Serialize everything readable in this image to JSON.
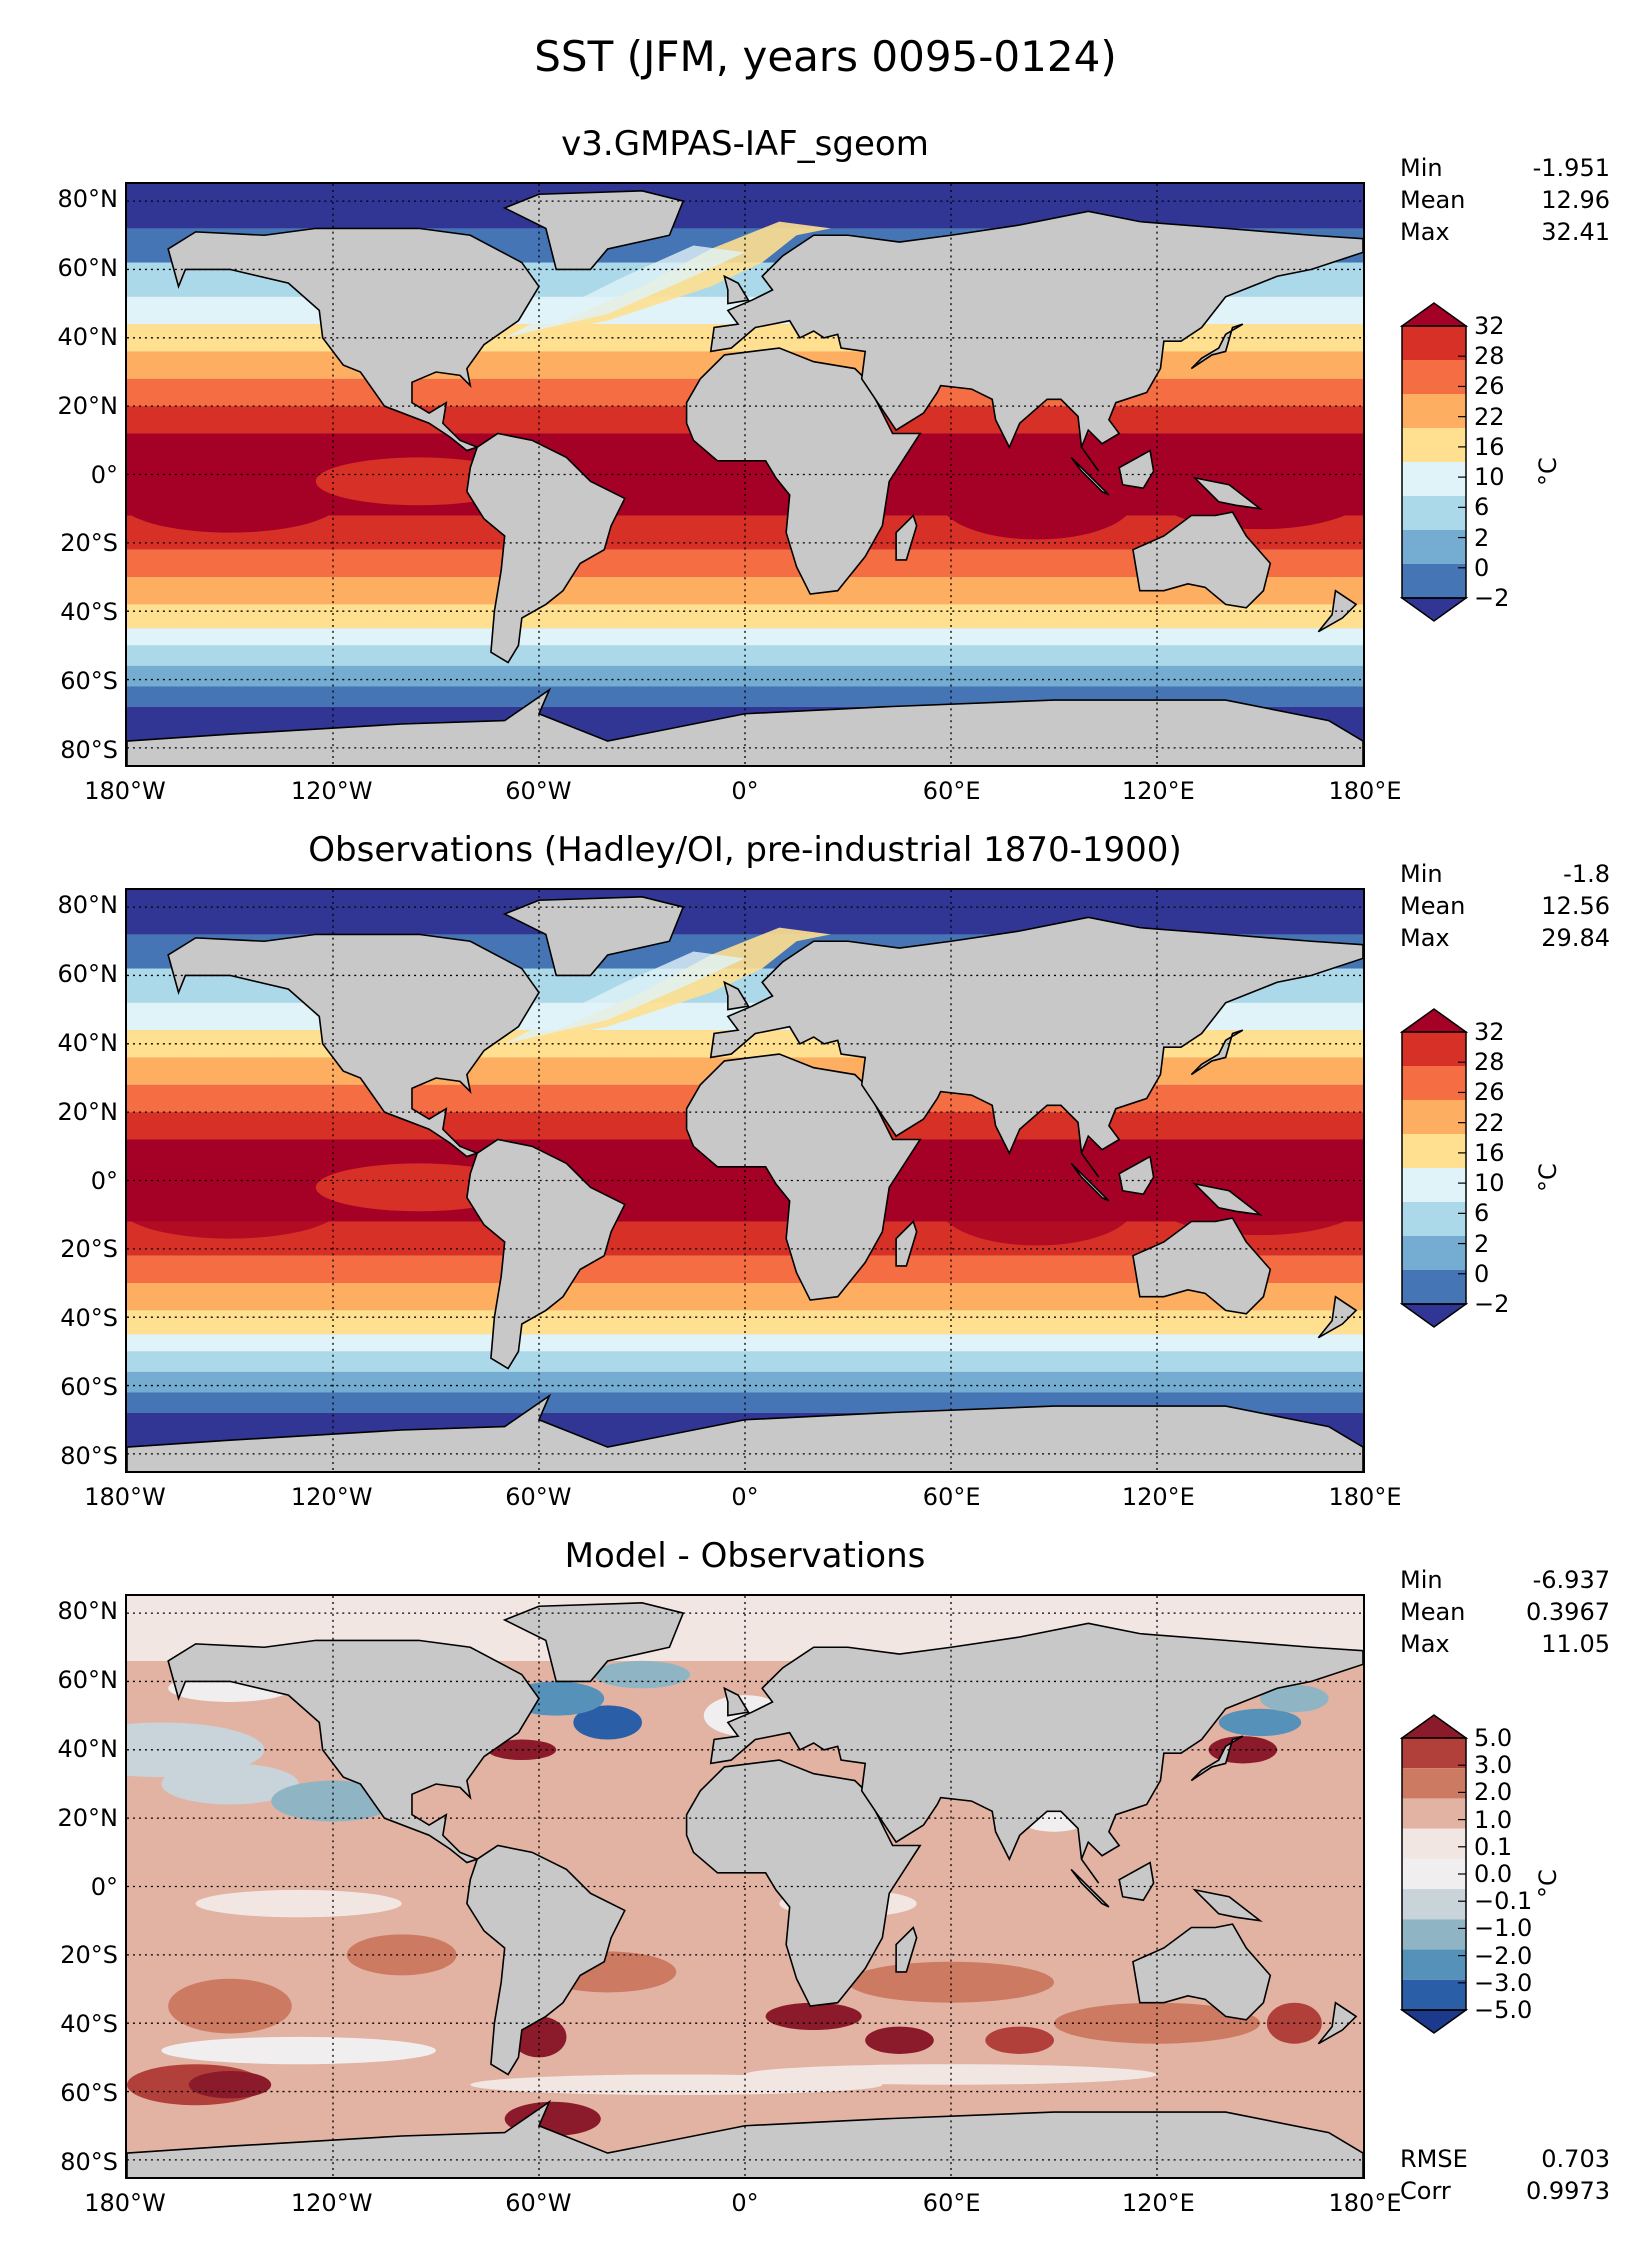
{
  "figure": {
    "title": "SST (JFM, years 0095-0124)"
  },
  "axes": {
    "lat_ticks": [
      "80°N",
      "60°N",
      "40°N",
      "20°N",
      "0°",
      "20°S",
      "40°S",
      "60°S",
      "80°S"
    ],
    "lon_ticks": [
      "180°W",
      "120°W",
      "60°W",
      "0°",
      "60°E",
      "120°E",
      "180°E"
    ]
  },
  "panels": [
    {
      "id": "model",
      "title": "v3.GMPAS-IAF_sgeom",
      "stats": [
        {
          "label": "Min",
          "value": "-1.951"
        },
        {
          "label": "Mean",
          "value": "12.96"
        },
        {
          "label": "Max",
          "value": "32.41"
        }
      ],
      "colorbar": {
        "unit": "°C",
        "ticks": [
          "32",
          "28",
          "26",
          "22",
          "16",
          "10",
          "6",
          "2",
          "0",
          "−2"
        ],
        "colors": [
          "#a50026",
          "#d73027",
          "#f46d43",
          "#fdae61",
          "#fee090",
          "#e0f3f8",
          "#abd9e9",
          "#74add1",
          "#4575b4",
          "#313695"
        ]
      }
    },
    {
      "id": "obs",
      "title": "Observations (Hadley/OI, pre-industrial 1870-1900)",
      "stats": [
        {
          "label": "Min",
          "value": "-1.8"
        },
        {
          "label": "Mean",
          "value": "12.56"
        },
        {
          "label": "Max",
          "value": "29.84"
        }
      ],
      "colorbar": {
        "unit": "°C",
        "ticks": [
          "32",
          "28",
          "26",
          "22",
          "16",
          "10",
          "6",
          "2",
          "0",
          "−2"
        ],
        "colors": [
          "#a50026",
          "#d73027",
          "#f46d43",
          "#fdae61",
          "#fee090",
          "#e0f3f8",
          "#abd9e9",
          "#74add1",
          "#4575b4",
          "#313695"
        ]
      }
    },
    {
      "id": "diff",
      "title": "Model - Observations",
      "stats": [
        {
          "label": "Min",
          "value": "-6.937"
        },
        {
          "label": "Mean",
          "value": "0.3967"
        },
        {
          "label": "Max",
          "value": "11.05"
        }
      ],
      "extra_stats": [
        {
          "label": "RMSE",
          "value": "0.703"
        },
        {
          "label": "Corr",
          "value": "0.9973"
        }
      ],
      "colorbar": {
        "unit": "°C",
        "ticks": [
          "5.0",
          "3.0",
          "2.0",
          "1.0",
          "0.1",
          "0.0",
          "−0.1",
          "−1.0",
          "−2.0",
          "−3.0",
          "−5.0"
        ],
        "colors": [
          "#8b1a2b",
          "#b2403a",
          "#cd7a63",
          "#e2b3a2",
          "#f2e6e3",
          "#f0eeee",
          "#c9d3da",
          "#8fb5c5",
          "#5591b8",
          "#2a5fa8",
          "#1c3a8c"
        ]
      }
    }
  ]
}
